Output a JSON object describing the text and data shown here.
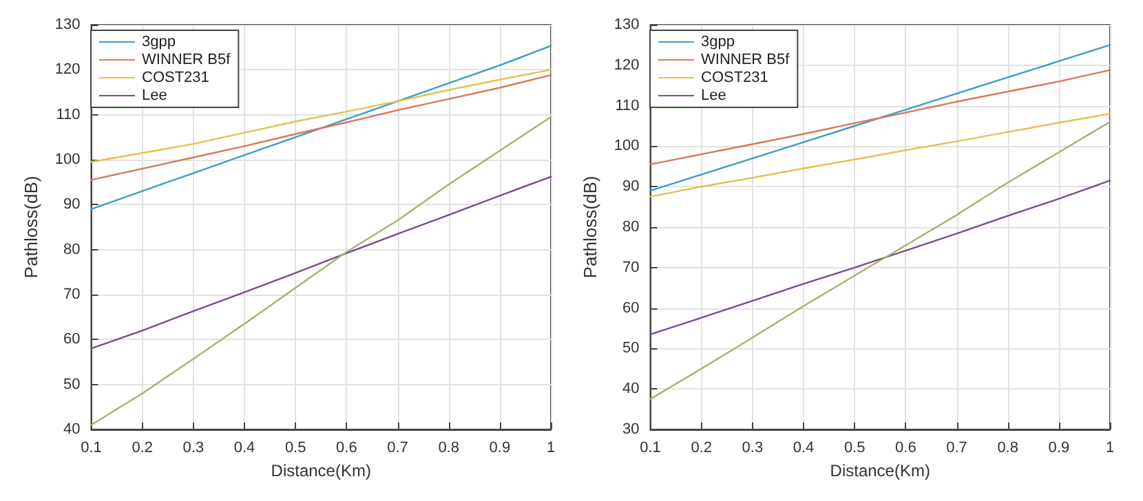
{
  "chart_data": [
    {
      "type": "line",
      "xlabel": "Distance(Km)",
      "ylabel": "Pathloss(dB)",
      "x": [
        0.1,
        0.2,
        0.3,
        0.4,
        0.5,
        0.6,
        0.7,
        0.8,
        0.9,
        1
      ],
      "xlim": [
        0.1,
        1
      ],
      "xticks": [
        0.1,
        0.2,
        0.3,
        0.4,
        0.5,
        0.6,
        0.7,
        0.8,
        0.9,
        1
      ],
      "ylim": [
        40,
        130
      ],
      "yticks": [
        40,
        50,
        60,
        70,
        80,
        90,
        100,
        110,
        120,
        130
      ],
      "grid": true,
      "legend": "top left",
      "line_style": "solid",
      "series": [
        {
          "name": "3gpp",
          "color": "#3d9cc6",
          "values": [
            89,
            93,
            97,
            101,
            105,
            109,
            113,
            117,
            121,
            125.3
          ]
        },
        {
          "name": "WINNER B5f",
          "color": "#d9775a",
          "values": [
            95.5,
            98,
            100.5,
            103,
            105.7,
            108.3,
            111,
            113.5,
            116,
            118.8
          ]
        },
        {
          "name": "COST231",
          "color": "#e6c050",
          "values": [
            99.5,
            101.5,
            103.5,
            106,
            108.5,
            110.7,
            113,
            115.5,
            117.8,
            120
          ]
        },
        {
          "name": "Lee",
          "color": "#7e4a8e",
          "values": [
            58,
            62,
            66.3,
            70.5,
            74.8,
            79.2,
            83.5,
            87.7,
            92,
            96.2
          ]
        },
        {
          "color": "#a3b46e",
          "values": [
            41,
            48,
            55.7,
            63.5,
            71.5,
            79.5,
            86.5,
            94.5,
            102,
            109.5
          ]
        }
      ]
    },
    {
      "type": "line",
      "xlabel": "Distance(Km)",
      "ylabel": "Pathloss(dB)",
      "x": [
        0.1,
        0.2,
        0.3,
        0.4,
        0.5,
        0.6,
        0.7,
        0.8,
        0.9,
        1
      ],
      "xlim": [
        0.1,
        1
      ],
      "xticks": [
        0.1,
        0.2,
        0.3,
        0.4,
        0.5,
        0.6,
        0.7,
        0.8,
        0.9,
        1
      ],
      "ylim": [
        30,
        130
      ],
      "yticks": [
        30,
        40,
        50,
        60,
        70,
        80,
        90,
        100,
        110,
        120,
        130
      ],
      "grid": true,
      "legend": "top left",
      "line_style": "solid",
      "series": [
        {
          "name": "3gpp",
          "color": "#3d9cc6",
          "values": [
            89,
            93,
            97,
            101,
            105,
            109,
            113,
            117,
            121,
            125
          ]
        },
        {
          "name": "WINNER B5f",
          "color": "#d9775a",
          "values": [
            95.5,
            98,
            100.5,
            103,
            105.7,
            108.3,
            111,
            113.5,
            116,
            118.8
          ]
        },
        {
          "name": "COST231",
          "color": "#e6c050",
          "values": [
            87.5,
            90,
            92.2,
            94.5,
            96.7,
            99,
            101.2,
            103.5,
            105.8,
            108
          ]
        },
        {
          "name": "Lee",
          "color": "#7e4a8e",
          "values": [
            53.5,
            57.6,
            61.8,
            66,
            70,
            74.2,
            78.4,
            82.8,
            87,
            91.5
          ]
        },
        {
          "color": "#a3b46e",
          "values": [
            37.5,
            45,
            52.7,
            60.5,
            68,
            75.5,
            83,
            91,
            98.5,
            106
          ]
        }
      ]
    }
  ]
}
